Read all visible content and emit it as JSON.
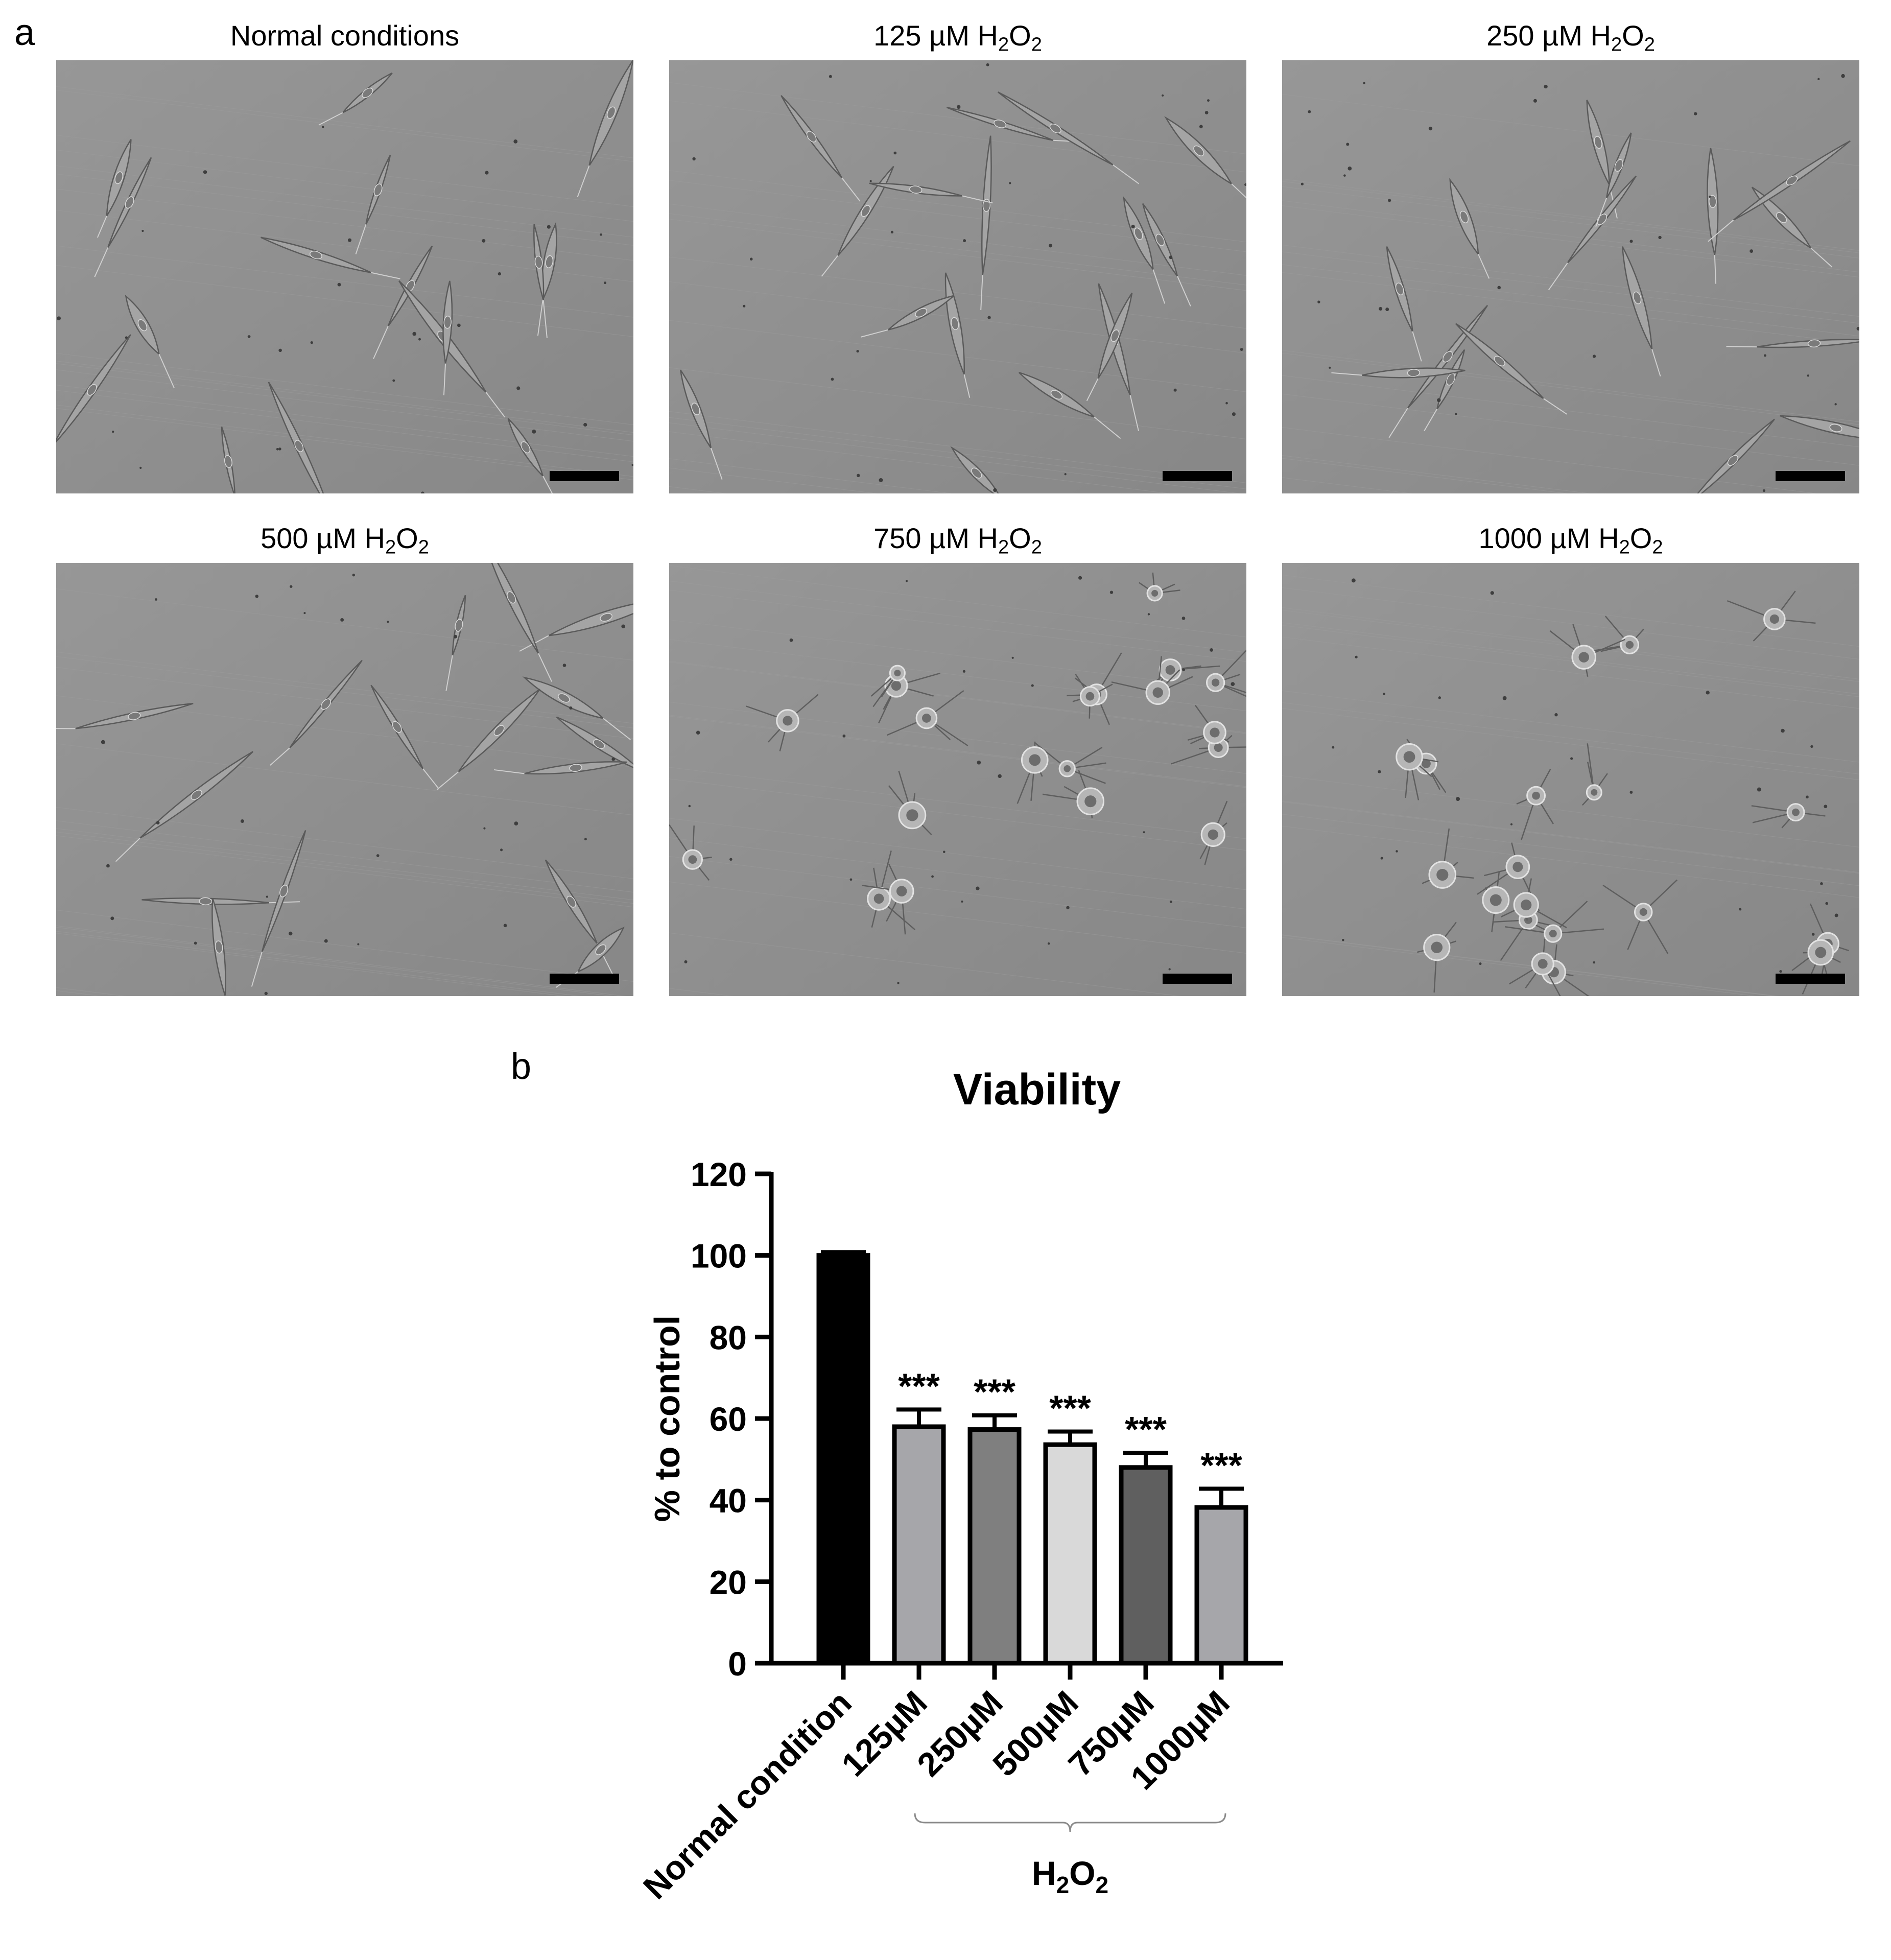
{
  "panel_a": {
    "letter": "a",
    "images": [
      {
        "title": "Normal conditions",
        "chem": false,
        "morphology": "spindle"
      },
      {
        "title_prefix": "125 µM ",
        "chem": true,
        "morphology": "spindle"
      },
      {
        "title_prefix": "250 µM ",
        "chem": true,
        "morphology": "spindle"
      },
      {
        "title_prefix": "500 µM ",
        "chem": true,
        "morphology": "spindle"
      },
      {
        "title_prefix": "750 µM ",
        "chem": true,
        "morphology": "rounded"
      },
      {
        "title_prefix": "1000 µM ",
        "chem": true,
        "morphology": "rounded"
      }
    ]
  },
  "chem": {
    "h": "H",
    "h_sub": "2",
    "o": "O",
    "o_sub": "2"
  },
  "panel_b": {
    "letter": "b"
  },
  "chart_data": {
    "type": "bar",
    "title": "Viability",
    "ylabel": "% to control",
    "xlabel": "",
    "ylim": [
      0,
      120
    ],
    "yticks": [
      0,
      20,
      40,
      60,
      80,
      100,
      120
    ],
    "categories": [
      "Normal condition",
      "125µM",
      "250µM",
      "500µM",
      "750µM",
      "1000µM"
    ],
    "values": [
      100,
      58,
      57.3,
      53.6,
      48,
      38.2
    ],
    "errors": [
      0.8,
      4.2,
      3.5,
      3.2,
      3.6,
      4.6
    ],
    "colors": [
      "#000000",
      "#a6a6aa",
      "#7f7f7f",
      "#d9d9d9",
      "#5f5f5f",
      "#a6a6aa"
    ],
    "significance": [
      "",
      "***",
      "***",
      "***",
      "***",
      "***"
    ],
    "group_bracket": {
      "covers": [
        1,
        5
      ]
    },
    "grid": false,
    "legend": "none"
  }
}
